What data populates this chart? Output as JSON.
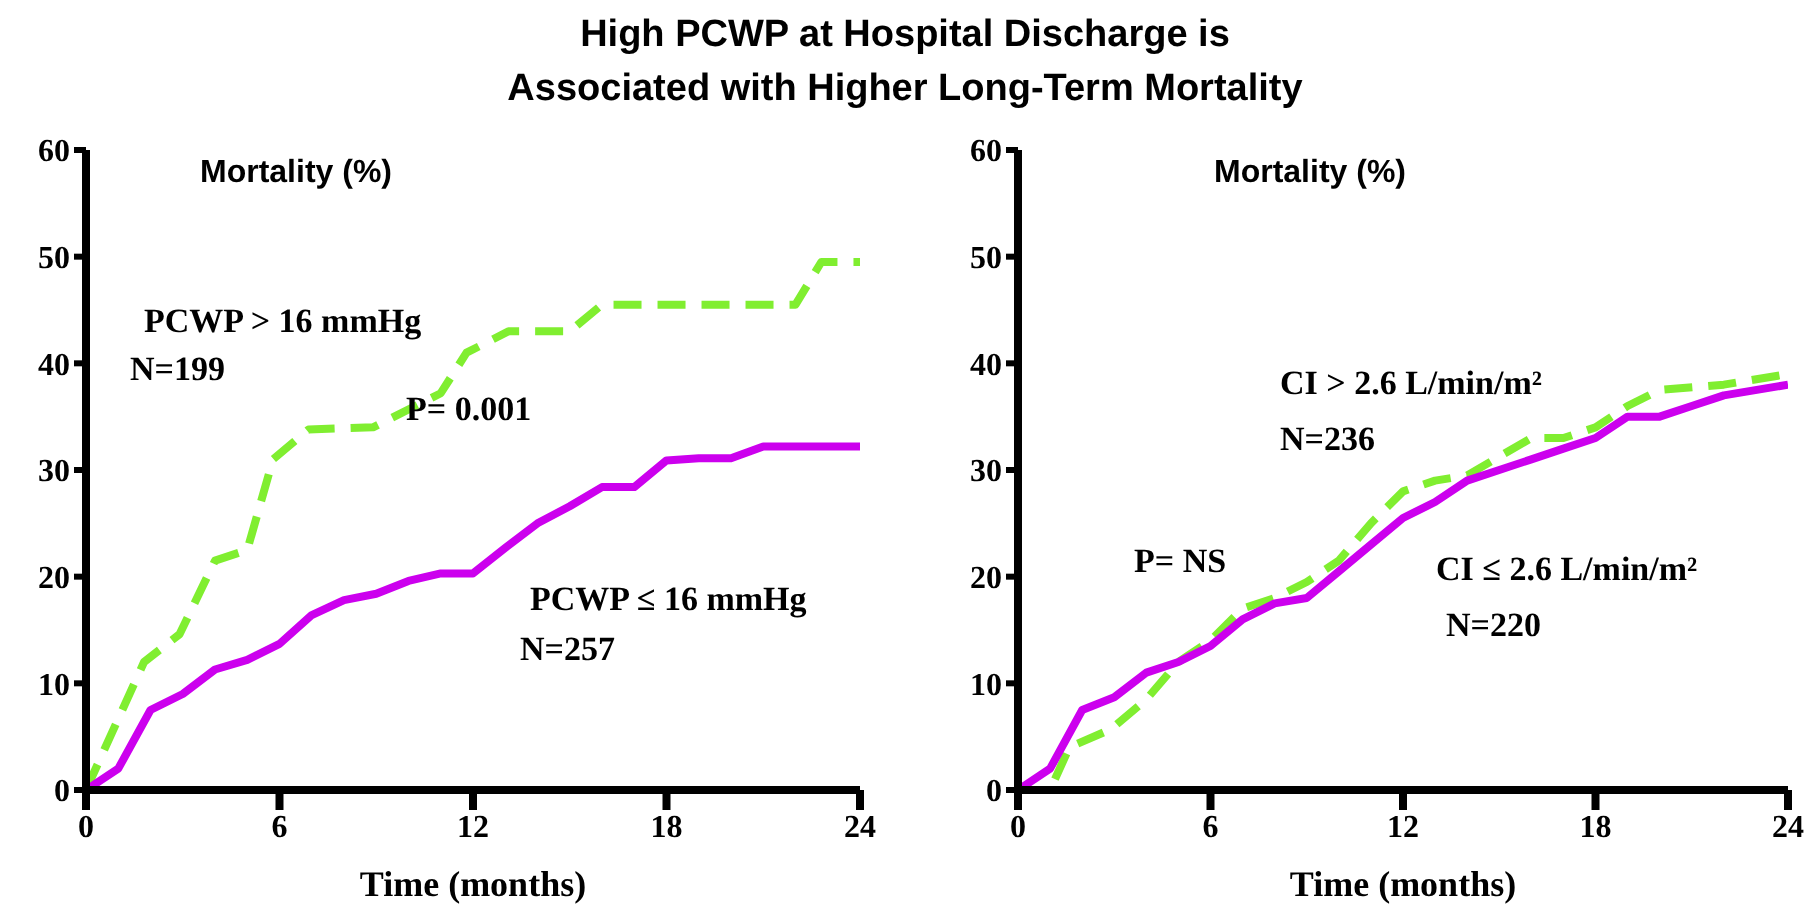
{
  "chart_data": [
    {
      "type": "line",
      "title": "High PCWP at Hospital Discharge is\nAssociated with Higher Long-Term Mortality",
      "xlabel": "Time (months)",
      "ylabel": "Mortality (%)",
      "xlim": [
        0,
        24
      ],
      "xticks": [
        0,
        6,
        12,
        18,
        24
      ],
      "ylim": [
        0,
        60
      ],
      "yticks": [
        0,
        10,
        20,
        30,
        40,
        50,
        60
      ],
      "grid": false,
      "legend": false,
      "marker": "none",
      "annotations": [
        "N=199",
        "P= 0.001",
        "N=257"
      ],
      "series": [
        {
          "name": "PCWP > 16 mmHg",
          "color": "#80ee30",
          "line_style": "dashed",
          "x": [
            0,
            1.8,
            2.9,
            4,
            5,
            5.8,
            6.9,
            8.9,
            11,
            11.8,
            13.1,
            15,
            16,
            22,
            22.8,
            24
          ],
          "values": [
            0,
            12,
            14.6,
            21.5,
            22.5,
            31,
            33.8,
            34,
            37.2,
            41,
            43,
            43,
            45.5,
            45.5,
            49.5,
            49.5
          ]
        },
        {
          "name": "PCWP ≤ 16 mmHg",
          "color": "#cc00ee",
          "line_style": "solid",
          "x": [
            0,
            1,
            2,
            3,
            4,
            5,
            6,
            7,
            8,
            9,
            10,
            11,
            12,
            13,
            14,
            15,
            16,
            17,
            18,
            19,
            20,
            21,
            24
          ],
          "values": [
            0,
            2,
            7.5,
            9,
            11.3,
            12.2,
            13.7,
            16.4,
            17.8,
            18.4,
            19.6,
            20.3,
            20.3,
            22.7,
            25,
            26.6,
            28.4,
            28.4,
            30.9,
            31.1,
            31.1,
            32.2,
            32.2
          ]
        }
      ]
    },
    {
      "type": "line",
      "xlabel": "Time (months)",
      "ylabel": "Mortality (%)",
      "xlim": [
        0,
        24
      ],
      "xticks": [
        0,
        6,
        12,
        18,
        24
      ],
      "ylim": [
        0,
        60
      ],
      "yticks": [
        0,
        10,
        20,
        30,
        40,
        50,
        60
      ],
      "grid": false,
      "legend": false,
      "marker": "none",
      "annotations": [
        "N=236",
        "P= NS",
        "N=220"
      ],
      "series": [
        {
          "name": "CI > 2.6 L/min/m²",
          "color": "#80ee30",
          "line_style": "dashed",
          "x": [
            0,
            1,
            1.6,
            2.9,
            4,
            5,
            6,
            7,
            8,
            9,
            10,
            11,
            12,
            13,
            14,
            16,
            17,
            18,
            19,
            20,
            22,
            24
          ],
          "values": [
            0,
            0,
            4,
            5.7,
            8.5,
            12,
            14,
            17,
            18,
            19.5,
            21.5,
            25,
            28,
            29,
            29.5,
            33,
            33,
            34,
            36,
            37.5,
            38,
            39
          ]
        },
        {
          "name": "CI ≤ 2.6 L/min/m²",
          "color": "#cc00ee",
          "line_style": "solid",
          "x": [
            0,
            1,
            2,
            3,
            4,
            5,
            6,
            7,
            8,
            9,
            10,
            11,
            12,
            13,
            14,
            15,
            16,
            17,
            18,
            19,
            20,
            21,
            22,
            24
          ],
          "values": [
            0,
            2,
            7.5,
            8.7,
            11,
            12,
            13.5,
            16,
            17.5,
            18,
            20.5,
            23,
            25.5,
            27,
            29,
            30,
            31,
            32,
            33,
            35,
            35,
            36,
            37,
            38
          ]
        }
      ]
    }
  ]
}
